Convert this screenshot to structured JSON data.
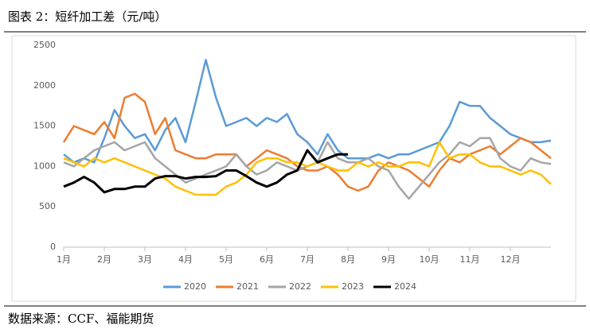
{
  "header": {
    "title": "图表 2：短纤加工差（元/吨）"
  },
  "footer": {
    "source": "数据来源：CCF、福能期货"
  },
  "chart_data": {
    "type": "line",
    "x": [
      1,
      1.25,
      1.5,
      1.75,
      2,
      2.25,
      2.5,
      2.75,
      3,
      3.25,
      3.5,
      3.75,
      4,
      4.25,
      4.5,
      4.75,
      5,
      5.25,
      5.5,
      5.75,
      6,
      6.25,
      6.5,
      6.75,
      7,
      7.25,
      7.5,
      7.75,
      8,
      8.25,
      8.5,
      8.75,
      9,
      9.25,
      9.5,
      9.75,
      10,
      10.25,
      10.5,
      10.75,
      11,
      11.25,
      11.5,
      11.75,
      12,
      12.25,
      12.5,
      12.75,
      13
    ],
    "xlim": [
      1,
      13
    ],
    "xticks": [
      {
        "value": 1,
        "label": "1月"
      },
      {
        "value": 2,
        "label": "2月"
      },
      {
        "value": 3,
        "label": "3月"
      },
      {
        "value": 4,
        "label": "4月"
      },
      {
        "value": 5,
        "label": "5月"
      },
      {
        "value": 6,
        "label": "6月"
      },
      {
        "value": 7,
        "label": "7月"
      },
      {
        "value": 8,
        "label": "8月"
      },
      {
        "value": 9,
        "label": "9月"
      },
      {
        "value": 10,
        "label": "10月"
      },
      {
        "value": 11,
        "label": "11月"
      },
      {
        "value": 12,
        "label": "12月"
      }
    ],
    "ylim": [
      0,
      2500
    ],
    "yticks": [
      0,
      500,
      1000,
      1500,
      2000,
      2500
    ],
    "grid": false,
    "legend": "bottom",
    "series": [
      {
        "name": "2020",
        "color": "#5b9bd5",
        "values": [
          1150,
          1050,
          1100,
          1050,
          1350,
          1700,
          1500,
          1350,
          1400,
          1200,
          1450,
          1600,
          1300,
          1800,
          2320,
          1850,
          1500,
          1550,
          1600,
          1500,
          1600,
          1550,
          1650,
          1400,
          1300,
          1150,
          1400,
          1200,
          1100,
          1100,
          1100,
          1150,
          1100,
          1150,
          1150,
          1200,
          1250,
          1300,
          1500,
          1800,
          1750,
          1750,
          1600,
          1500,
          1400,
          1350,
          1300,
          1300,
          1320
        ]
      },
      {
        "name": "2021",
        "color": "#ed7d31",
        "values": [
          1300,
          1500,
          1450,
          1400,
          1550,
          1350,
          1850,
          1900,
          1800,
          1400,
          1600,
          1200,
          1150,
          1100,
          1100,
          1150,
          1150,
          1150,
          1000,
          1100,
          1200,
          1150,
          1100,
          1000,
          950,
          950,
          1000,
          900,
          750,
          700,
          750,
          950,
          1050,
          1000,
          950,
          850,
          750,
          950,
          1100,
          1050,
          1150,
          1200,
          1250,
          1150,
          1250,
          1350,
          1300,
          1200,
          1100
        ]
      },
      {
        "name": "2022",
        "color": "#a5a5a5",
        "values": [
          1050,
          1000,
          1100,
          1200,
          1250,
          1300,
          1200,
          1250,
          1300,
          1100,
          1000,
          900,
          800,
          850,
          900,
          950,
          1000,
          1150,
          1000,
          900,
          950,
          1050,
          1000,
          950,
          1000,
          1050,
          1300,
          1100,
          1050,
          1050,
          1100,
          1000,
          950,
          750,
          600,
          750,
          900,
          1050,
          1150,
          1300,
          1250,
          1350,
          1350,
          1100,
          1000,
          950,
          1100,
          1050,
          1030
        ]
      },
      {
        "name": "2023",
        "color": "#ffc000",
        "values": [
          1100,
          1050,
          1000,
          1100,
          1050,
          1100,
          1050,
          1000,
          950,
          900,
          850,
          750,
          700,
          650,
          650,
          650,
          750,
          800,
          900,
          1050,
          1100,
          1100,
          1050,
          1050,
          1000,
          1050,
          1000,
          950,
          950,
          1050,
          1000,
          1050,
          1000,
          1000,
          1050,
          1050,
          1000,
          1300,
          1100,
          1150,
          1150,
          1050,
          1000,
          1000,
          950,
          900,
          950,
          900,
          780
        ]
      },
      {
        "name": "2024",
        "color": "#000000",
        "values": [
          750,
          800,
          870,
          800,
          680,
          720,
          720,
          750,
          750,
          850,
          880,
          880,
          850,
          870,
          870,
          880,
          950,
          950,
          880,
          800,
          750,
          800,
          900,
          950,
          1200,
          1050,
          1100,
          1150,
          1150,
          null,
          null,
          null,
          null,
          null,
          null,
          null,
          null,
          null,
          null,
          null,
          null,
          null,
          null,
          null,
          null,
          null,
          null,
          null,
          null
        ]
      }
    ]
  }
}
